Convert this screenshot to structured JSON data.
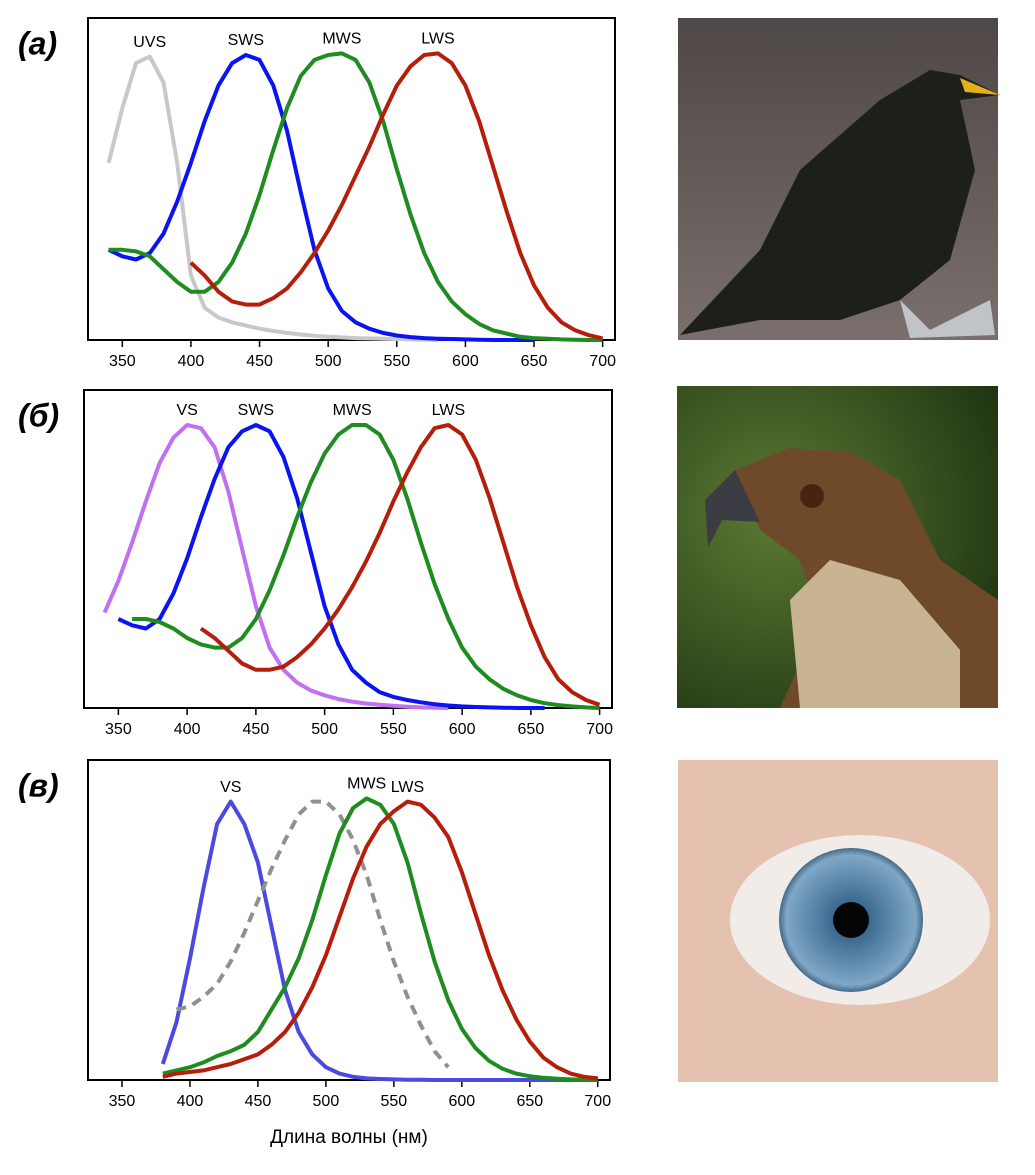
{
  "chart_data": [
    {
      "type": "line",
      "panel_label": "(а)",
      "x": [
        340,
        350,
        360,
        370,
        380,
        390,
        400,
        410,
        420,
        430,
        440,
        450,
        460,
        470,
        480,
        490,
        500,
        510,
        520,
        530,
        540,
        550,
        560,
        570,
        580,
        590,
        600,
        610,
        620,
        630,
        640,
        650,
        660,
        670,
        680,
        690,
        700
      ],
      "xlim": [
        325,
        709
      ],
      "xticks": [
        350,
        400,
        450,
        500,
        550,
        600,
        650,
        700
      ],
      "ylim": [
        0,
        1
      ],
      "series": [
        {
          "name": "UVS",
          "color": "#c8c8c8",
          "values": [
            0.55,
            0.72,
            0.86,
            0.88,
            0.8,
            0.55,
            0.2,
            0.1,
            0.07,
            0.055,
            0.045,
            0.035,
            0.028,
            0.022,
            0.017,
            0.013,
            0.01,
            0.008,
            0.006,
            0.005,
            0.004,
            0.003,
            0.002,
            0.001,
            0,
            null,
            null,
            null,
            null,
            null,
            null,
            null,
            null,
            null,
            null,
            null,
            null
          ]
        },
        {
          "name": "SWS",
          "color": "#0a14f0",
          "values": [
            0.28,
            0.26,
            0.25,
            0.27,
            0.33,
            0.43,
            0.55,
            0.68,
            0.79,
            0.86,
            0.885,
            0.87,
            0.79,
            0.65,
            0.46,
            0.28,
            0.16,
            0.09,
            0.055,
            0.035,
            0.022,
            0.014,
            0.009,
            0.006,
            0.004,
            0.003,
            0.002,
            0.001,
            0,
            0,
            0,
            0,
            null,
            null,
            null,
            null,
            null
          ]
        },
        {
          "name": "MWS",
          "color": "#1e8c1e",
          "values": [
            0.28,
            0.28,
            0.275,
            0.26,
            0.22,
            0.18,
            0.15,
            0.15,
            0.18,
            0.24,
            0.33,
            0.45,
            0.59,
            0.72,
            0.82,
            0.87,
            0.885,
            0.89,
            0.87,
            0.8,
            0.68,
            0.53,
            0.39,
            0.27,
            0.18,
            0.12,
            0.08,
            0.05,
            0.03,
            0.02,
            0.01,
            0.006,
            0.004,
            0.002,
            0.001,
            0,
            0
          ]
        },
        {
          "name": "LWS",
          "color": "#b41e0a",
          "values": [
            null,
            null,
            null,
            null,
            null,
            null,
            0.24,
            0.2,
            0.15,
            0.12,
            0.11,
            0.11,
            0.13,
            0.16,
            0.21,
            0.27,
            0.34,
            0.42,
            0.51,
            0.6,
            0.7,
            0.79,
            0.85,
            0.885,
            0.89,
            0.86,
            0.79,
            0.68,
            0.54,
            0.4,
            0.27,
            0.17,
            0.1,
            0.055,
            0.03,
            0.015,
            0.005
          ]
        }
      ]
    },
    {
      "type": "line",
      "panel_label": "(б)",
      "x": [
        340,
        350,
        360,
        370,
        380,
        390,
        400,
        410,
        420,
        430,
        440,
        450,
        460,
        470,
        480,
        490,
        500,
        510,
        520,
        530,
        540,
        550,
        560,
        570,
        580,
        590,
        600,
        610,
        620,
        630,
        640,
        650,
        660,
        670,
        680,
        690,
        700
      ],
      "xlim": [
        325,
        709
      ],
      "xticks": [
        350,
        400,
        450,
        500,
        550,
        600,
        650,
        700
      ],
      "ylim": [
        0,
        1
      ],
      "series": [
        {
          "name": "VS",
          "color": "#c070f0",
          "values": [
            0.3,
            0.4,
            0.52,
            0.65,
            0.77,
            0.85,
            0.89,
            0.88,
            0.82,
            0.68,
            0.5,
            0.32,
            0.19,
            0.12,
            0.08,
            0.055,
            0.04,
            0.028,
            0.02,
            0.014,
            0.01,
            0.007,
            0.004,
            0.002,
            0.001,
            0,
            null,
            null,
            null,
            null,
            null,
            null,
            null,
            null,
            null,
            null,
            null
          ]
        },
        {
          "name": "SWS",
          "color": "#0a14f0",
          "values": [
            null,
            0.28,
            0.26,
            0.25,
            0.28,
            0.36,
            0.47,
            0.6,
            0.72,
            0.82,
            0.87,
            0.89,
            0.87,
            0.79,
            0.66,
            0.49,
            0.32,
            0.2,
            0.12,
            0.08,
            0.05,
            0.035,
            0.025,
            0.018,
            0.012,
            0.008,
            0.005,
            0.003,
            0.002,
            0.001,
            0,
            0,
            0,
            null,
            null,
            null,
            null
          ]
        },
        {
          "name": "MWS",
          "color": "#1e8c1e",
          "values": [
            null,
            null,
            0.28,
            0.28,
            0.27,
            0.25,
            0.22,
            0.2,
            0.19,
            0.19,
            0.22,
            0.28,
            0.37,
            0.48,
            0.6,
            0.71,
            0.8,
            0.86,
            0.89,
            0.89,
            0.86,
            0.78,
            0.66,
            0.52,
            0.39,
            0.28,
            0.19,
            0.13,
            0.09,
            0.06,
            0.04,
            0.025,
            0.015,
            0.009,
            0.005,
            0.002,
            0
          ]
        },
        {
          "name": "LWS",
          "color": "#b41e0a",
          "values": [
            null,
            null,
            null,
            null,
            null,
            null,
            null,
            0.25,
            0.22,
            0.18,
            0.14,
            0.12,
            0.12,
            0.13,
            0.16,
            0.2,
            0.25,
            0.31,
            0.38,
            0.46,
            0.55,
            0.65,
            0.74,
            0.82,
            0.88,
            0.89,
            0.86,
            0.78,
            0.66,
            0.52,
            0.38,
            0.26,
            0.16,
            0.09,
            0.05,
            0.025,
            0.01
          ]
        }
      ]
    },
    {
      "type": "line",
      "panel_label": "(в)",
      "x_label": "Длина волны (нм)",
      "x": [
        340,
        350,
        360,
        370,
        380,
        390,
        400,
        410,
        420,
        430,
        440,
        450,
        460,
        470,
        480,
        490,
        500,
        510,
        520,
        530,
        540,
        550,
        560,
        570,
        580,
        590,
        600,
        610,
        620,
        630,
        640,
        650,
        660,
        670,
        680,
        690,
        700
      ],
      "xlim": [
        325,
        709
      ],
      "xticks": [
        350,
        400,
        450,
        500,
        550,
        600,
        650,
        700
      ],
      "ylim": [
        0,
        1
      ],
      "series": [
        {
          "name": "VS",
          "color": "#4a4ae0",
          "values": [
            null,
            null,
            null,
            null,
            0.05,
            0.18,
            0.38,
            0.6,
            0.8,
            0.87,
            0.8,
            0.68,
            0.48,
            0.28,
            0.15,
            0.08,
            0.04,
            0.02,
            0.01,
            0.005,
            0.003,
            0.002,
            0.001,
            0.001,
            0,
            0,
            0,
            0,
            0,
            0,
            0,
            0,
            0,
            0,
            0,
            0,
            0
          ]
        },
        {
          "color": "#909090",
          "dash": true,
          "values": [
            null,
            null,
            null,
            null,
            null,
            0.22,
            0.23,
            0.26,
            0.3,
            0.37,
            0.46,
            0.56,
            0.66,
            0.75,
            0.83,
            0.87,
            0.87,
            0.83,
            0.75,
            0.64,
            0.5,
            0.37,
            0.26,
            0.17,
            0.09,
            0.04,
            null,
            null,
            null,
            null,
            null,
            null,
            null,
            null,
            null,
            null,
            null
          ]
        },
        {
          "name": "MWS",
          "color": "#1e8c1e",
          "values": [
            null,
            null,
            null,
            null,
            0.02,
            0.03,
            0.04,
            0.055,
            0.075,
            0.09,
            0.11,
            0.15,
            0.22,
            0.29,
            0.38,
            0.5,
            0.64,
            0.77,
            0.85,
            0.88,
            0.86,
            0.8,
            0.68,
            0.52,
            0.37,
            0.25,
            0.16,
            0.1,
            0.06,
            0.035,
            0.02,
            0.012,
            0.007,
            0.004,
            0.002,
            0.001,
            0
          ]
        },
        {
          "name": "LWS",
          "color": "#b41e0a",
          "values": [
            null,
            null,
            null,
            null,
            0.01,
            0.02,
            0.025,
            0.03,
            0.04,
            0.05,
            0.065,
            0.08,
            0.11,
            0.15,
            0.21,
            0.29,
            0.39,
            0.51,
            0.63,
            0.73,
            0.8,
            0.84,
            0.87,
            0.86,
            0.82,
            0.76,
            0.65,
            0.52,
            0.39,
            0.28,
            0.19,
            0.12,
            0.07,
            0.04,
            0.02,
            0.01,
            0.005
          ]
        }
      ]
    }
  ]
}
